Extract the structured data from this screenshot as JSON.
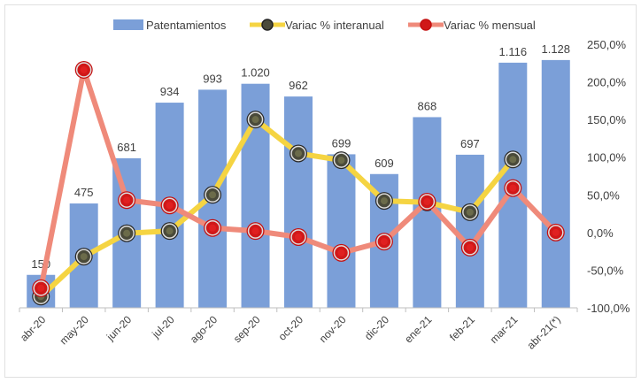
{
  "chart_data": {
    "type": "bar",
    "title": "",
    "categories": [
      "abr-20",
      "may-20",
      "jun-20",
      "jul-20",
      "ago-20",
      "sep-20",
      "oct-20",
      "nov-20",
      "dic-20",
      "ene-21",
      "feb-21",
      "mar-21",
      "abr-21(*)"
    ],
    "series": [
      {
        "name": "Patentamientos",
        "type": "bar",
        "axis": "left",
        "color": "#7b9fd8",
        "values": [
          150,
          475,
          681,
          934,
          993,
          1020,
          962,
          699,
          609,
          868,
          697,
          1116,
          1128
        ],
        "labels": [
          "150",
          "475",
          "681",
          "934",
          "993",
          "1.020",
          "962",
          "699",
          "609",
          "868",
          "697",
          "1.116",
          "1.128"
        ]
      },
      {
        "name": "Variac % interanual",
        "type": "line",
        "axis": "right",
        "color": "#f5d442",
        "marker_color": "#4a4a3a",
        "values": [
          -85,
          -32,
          -1,
          2,
          50,
          150,
          105,
          96,
          42,
          40,
          27,
          97,
          null
        ]
      },
      {
        "name": "Variac % mensual",
        "type": "line",
        "axis": "right",
        "color": "#ef8a7a",
        "marker_color": "#d01818",
        "values": [
          -74,
          216,
          43,
          36,
          6,
          2,
          -6,
          -27,
          -12,
          41,
          -20,
          59,
          0
        ]
      }
    ],
    "left_axis": {
      "range": [
        0,
        1200
      ],
      "visible": false
    },
    "right_axis": {
      "range": [
        -100,
        250
      ],
      "ticks": [
        -100,
        -50,
        0,
        50,
        100,
        150,
        200,
        250
      ],
      "tick_labels": [
        "-100,0%",
        "-50,0%",
        "0,0%",
        "50,0%",
        "100,0%",
        "150,0%",
        "200,0%",
        "250,0%"
      ]
    },
    "legend": {
      "placement": "top",
      "entries": [
        "Patentamientos",
        "Variac % interanual",
        "Variac % mensual"
      ]
    },
    "grid": false
  }
}
